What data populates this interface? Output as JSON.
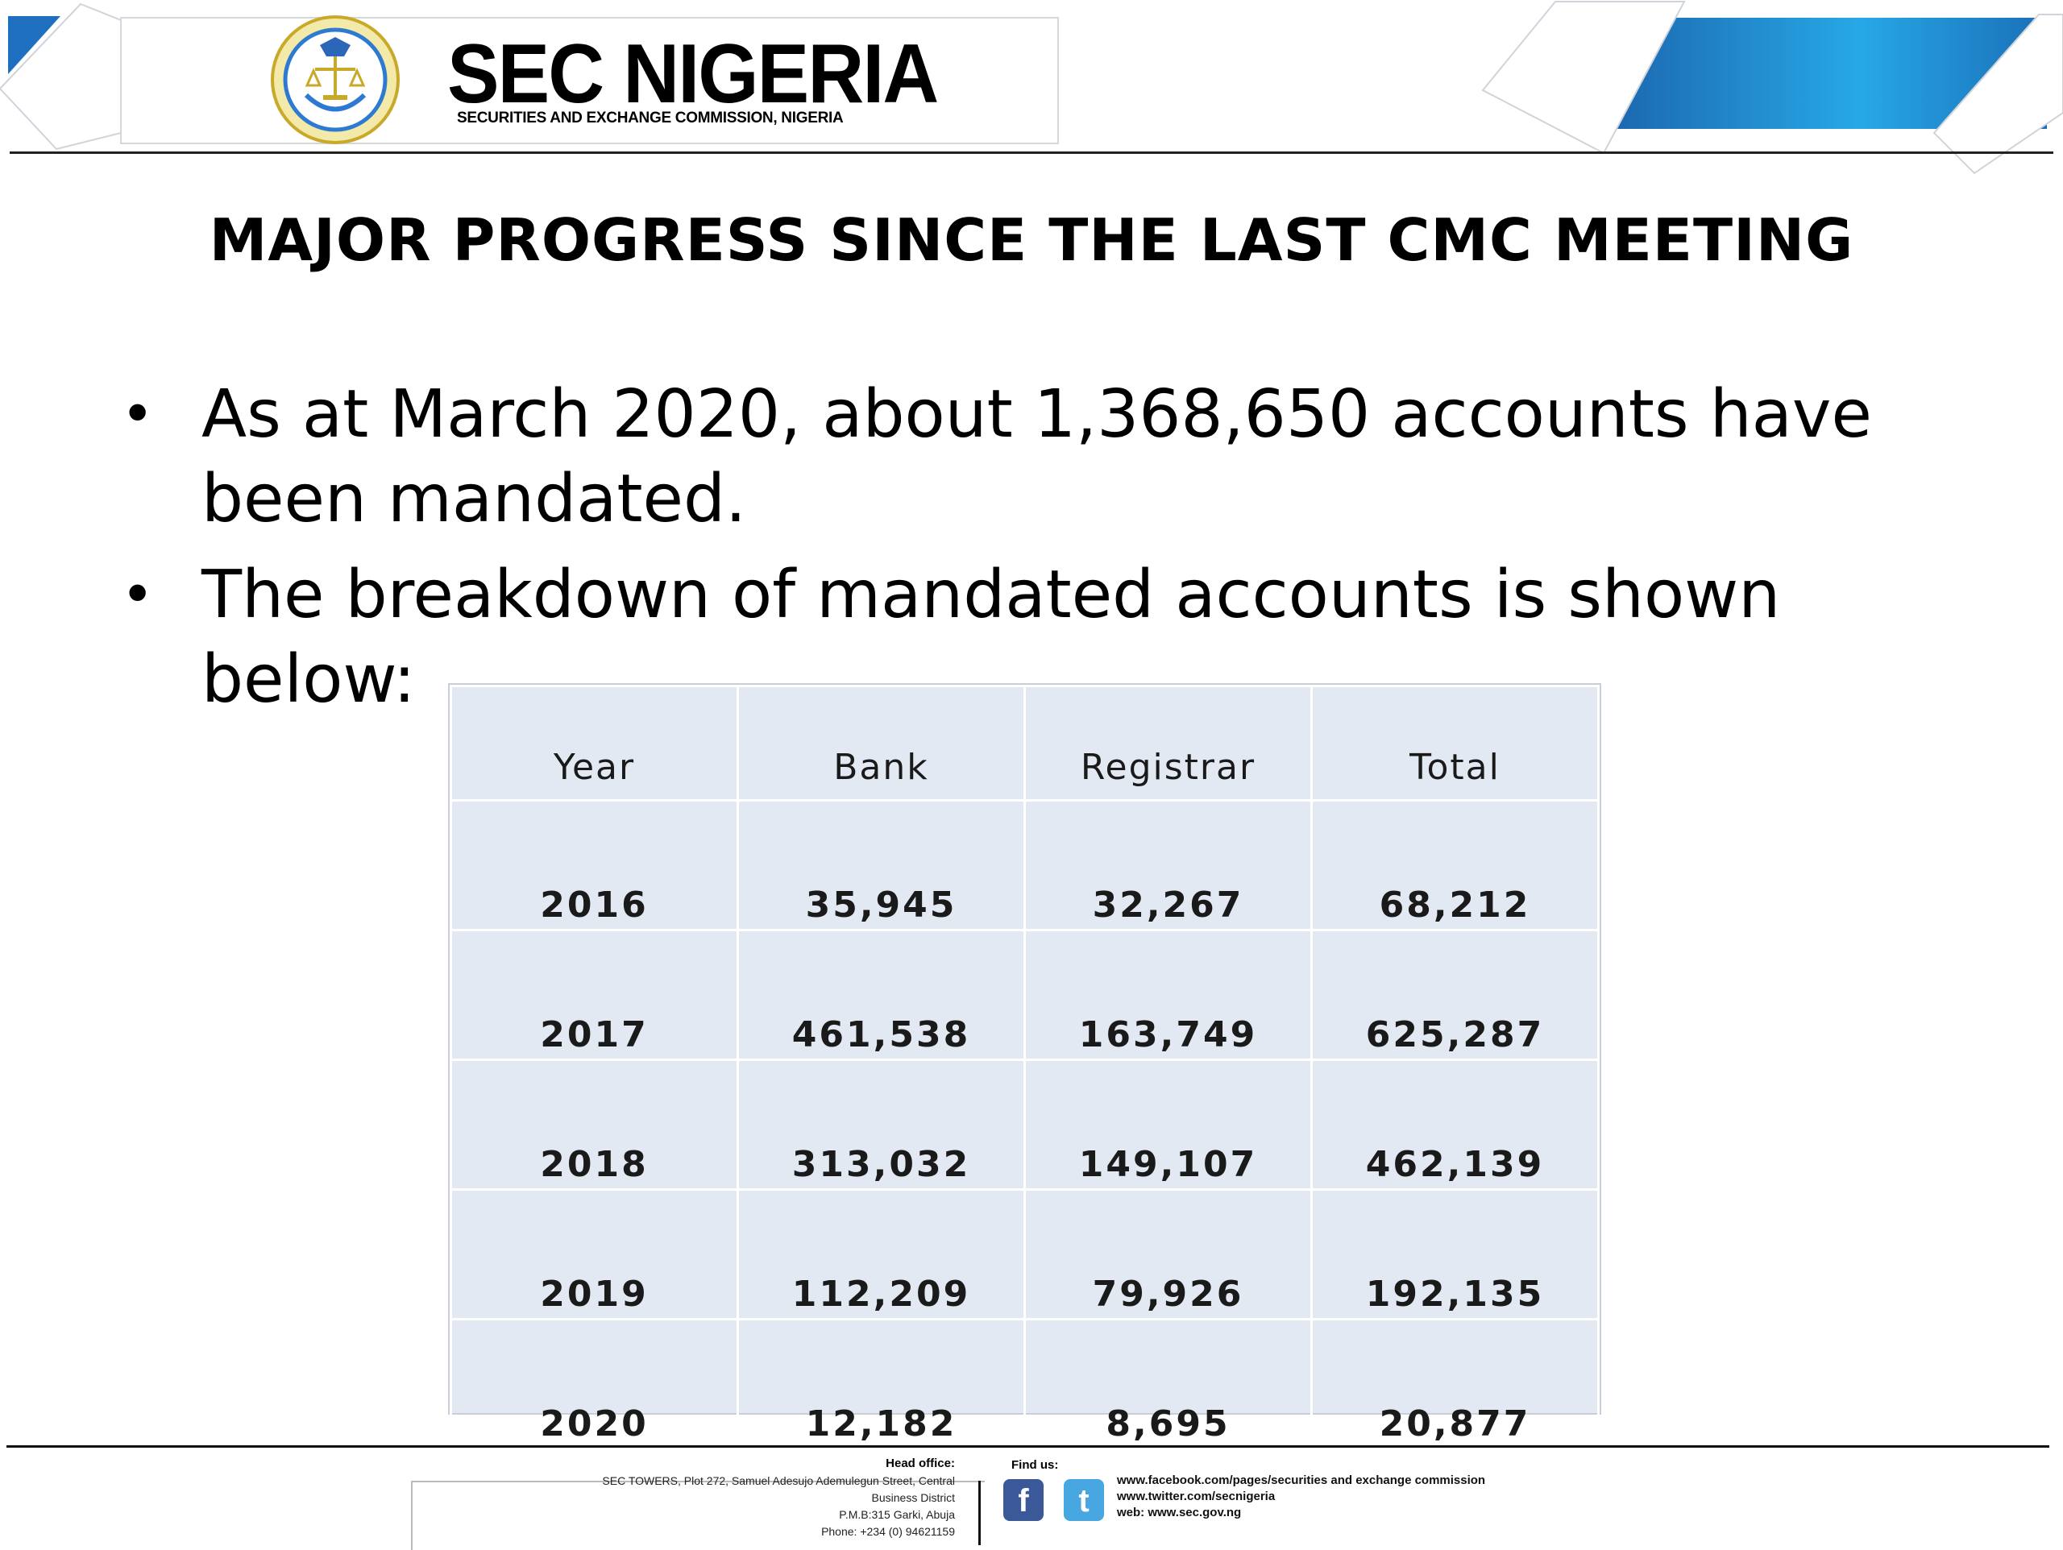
{
  "header": {
    "brand": "SEC NIGERIA",
    "subtitle": "SECURITIES AND EXCHANGE COMMISSION, NIGERIA",
    "colors": {
      "accent_blue": "#1f8fd6",
      "dark_blue": "#1a5fa8"
    }
  },
  "title": "MAJOR PROGRESS SINCE THE LAST CMC MEETING",
  "bullets": [
    "As at March 2020, about 1,368,650 accounts have been mandated.",
    "The breakdown of mandated accounts is shown below:"
  ],
  "table": {
    "headers": [
      "Year",
      "Bank",
      "Registrar",
      "Total"
    ],
    "rows": [
      [
        "2016",
        "35,945",
        "32,267",
        "68,212"
      ],
      [
        "2017",
        "461,538",
        "163,749",
        "625,287"
      ],
      [
        "2018",
        "313,032",
        "149,107",
        "462,139"
      ],
      [
        "2019",
        "112,209",
        "79,926",
        "192,135"
      ],
      [
        "2020",
        "12,182",
        "8,695",
        "20,877"
      ]
    ]
  },
  "footer": {
    "head_office_title": "Head office:",
    "head_office_lines": [
      "SEC TOWERS, Plot 272, Samuel Adesujo Ademulegun Street, Central",
      "Business District",
      "P.M.B:315 Garki, Abuja",
      "Phone: +234 (0) 94621159"
    ],
    "find_us_title": "Find us:",
    "social_icons": [
      "facebook-icon",
      "twitter-icon"
    ],
    "links": [
      "www.facebook.com/pages/securities and exchange commission",
      "www.twitter.com/secnigeria",
      "web: www.sec.gov.ng"
    ]
  }
}
